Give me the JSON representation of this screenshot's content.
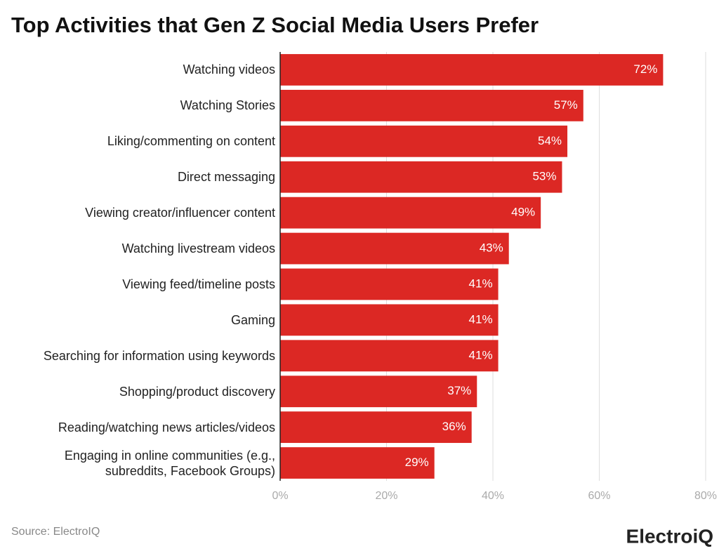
{
  "chart_data": {
    "type": "hbar",
    "title": "Top Activities that Gen Z Social Media Users Prefer",
    "categories": [
      "Watching videos",
      "Watching Stories",
      "Liking/commenting on content",
      "Direct messaging",
      "Viewing creator/influencer content",
      "Watching livestream videos",
      "Viewing feed/timeline posts",
      "Gaming",
      "Searching for information using keywords",
      "Shopping/product discovery",
      "Reading/watching news articles/videos",
      "Engaging in online communities (e.g.,\nsubreddits, Facebook Groups)"
    ],
    "values": [
      72,
      57,
      54,
      53,
      49,
      43,
      41,
      41,
      41,
      37,
      36,
      29
    ],
    "value_labels": [
      "72%",
      "57%",
      "54%",
      "53%",
      "49%",
      "43%",
      "41%",
      "41%",
      "41%",
      "37%",
      "36%",
      "29%"
    ],
    "color": "#dc2824",
    "xlim": [
      0,
      80
    ],
    "xticks": [
      {
        "value": 0,
        "label": "0%"
      },
      {
        "value": 20,
        "label": "20%"
      },
      {
        "value": 40,
        "label": "40%"
      },
      {
        "value": 60,
        "label": "60%"
      },
      {
        "value": 80,
        "label": "80%"
      }
    ],
    "grid": true,
    "source": "Source: ElectroIQ",
    "brand": "ElectroiQ"
  }
}
